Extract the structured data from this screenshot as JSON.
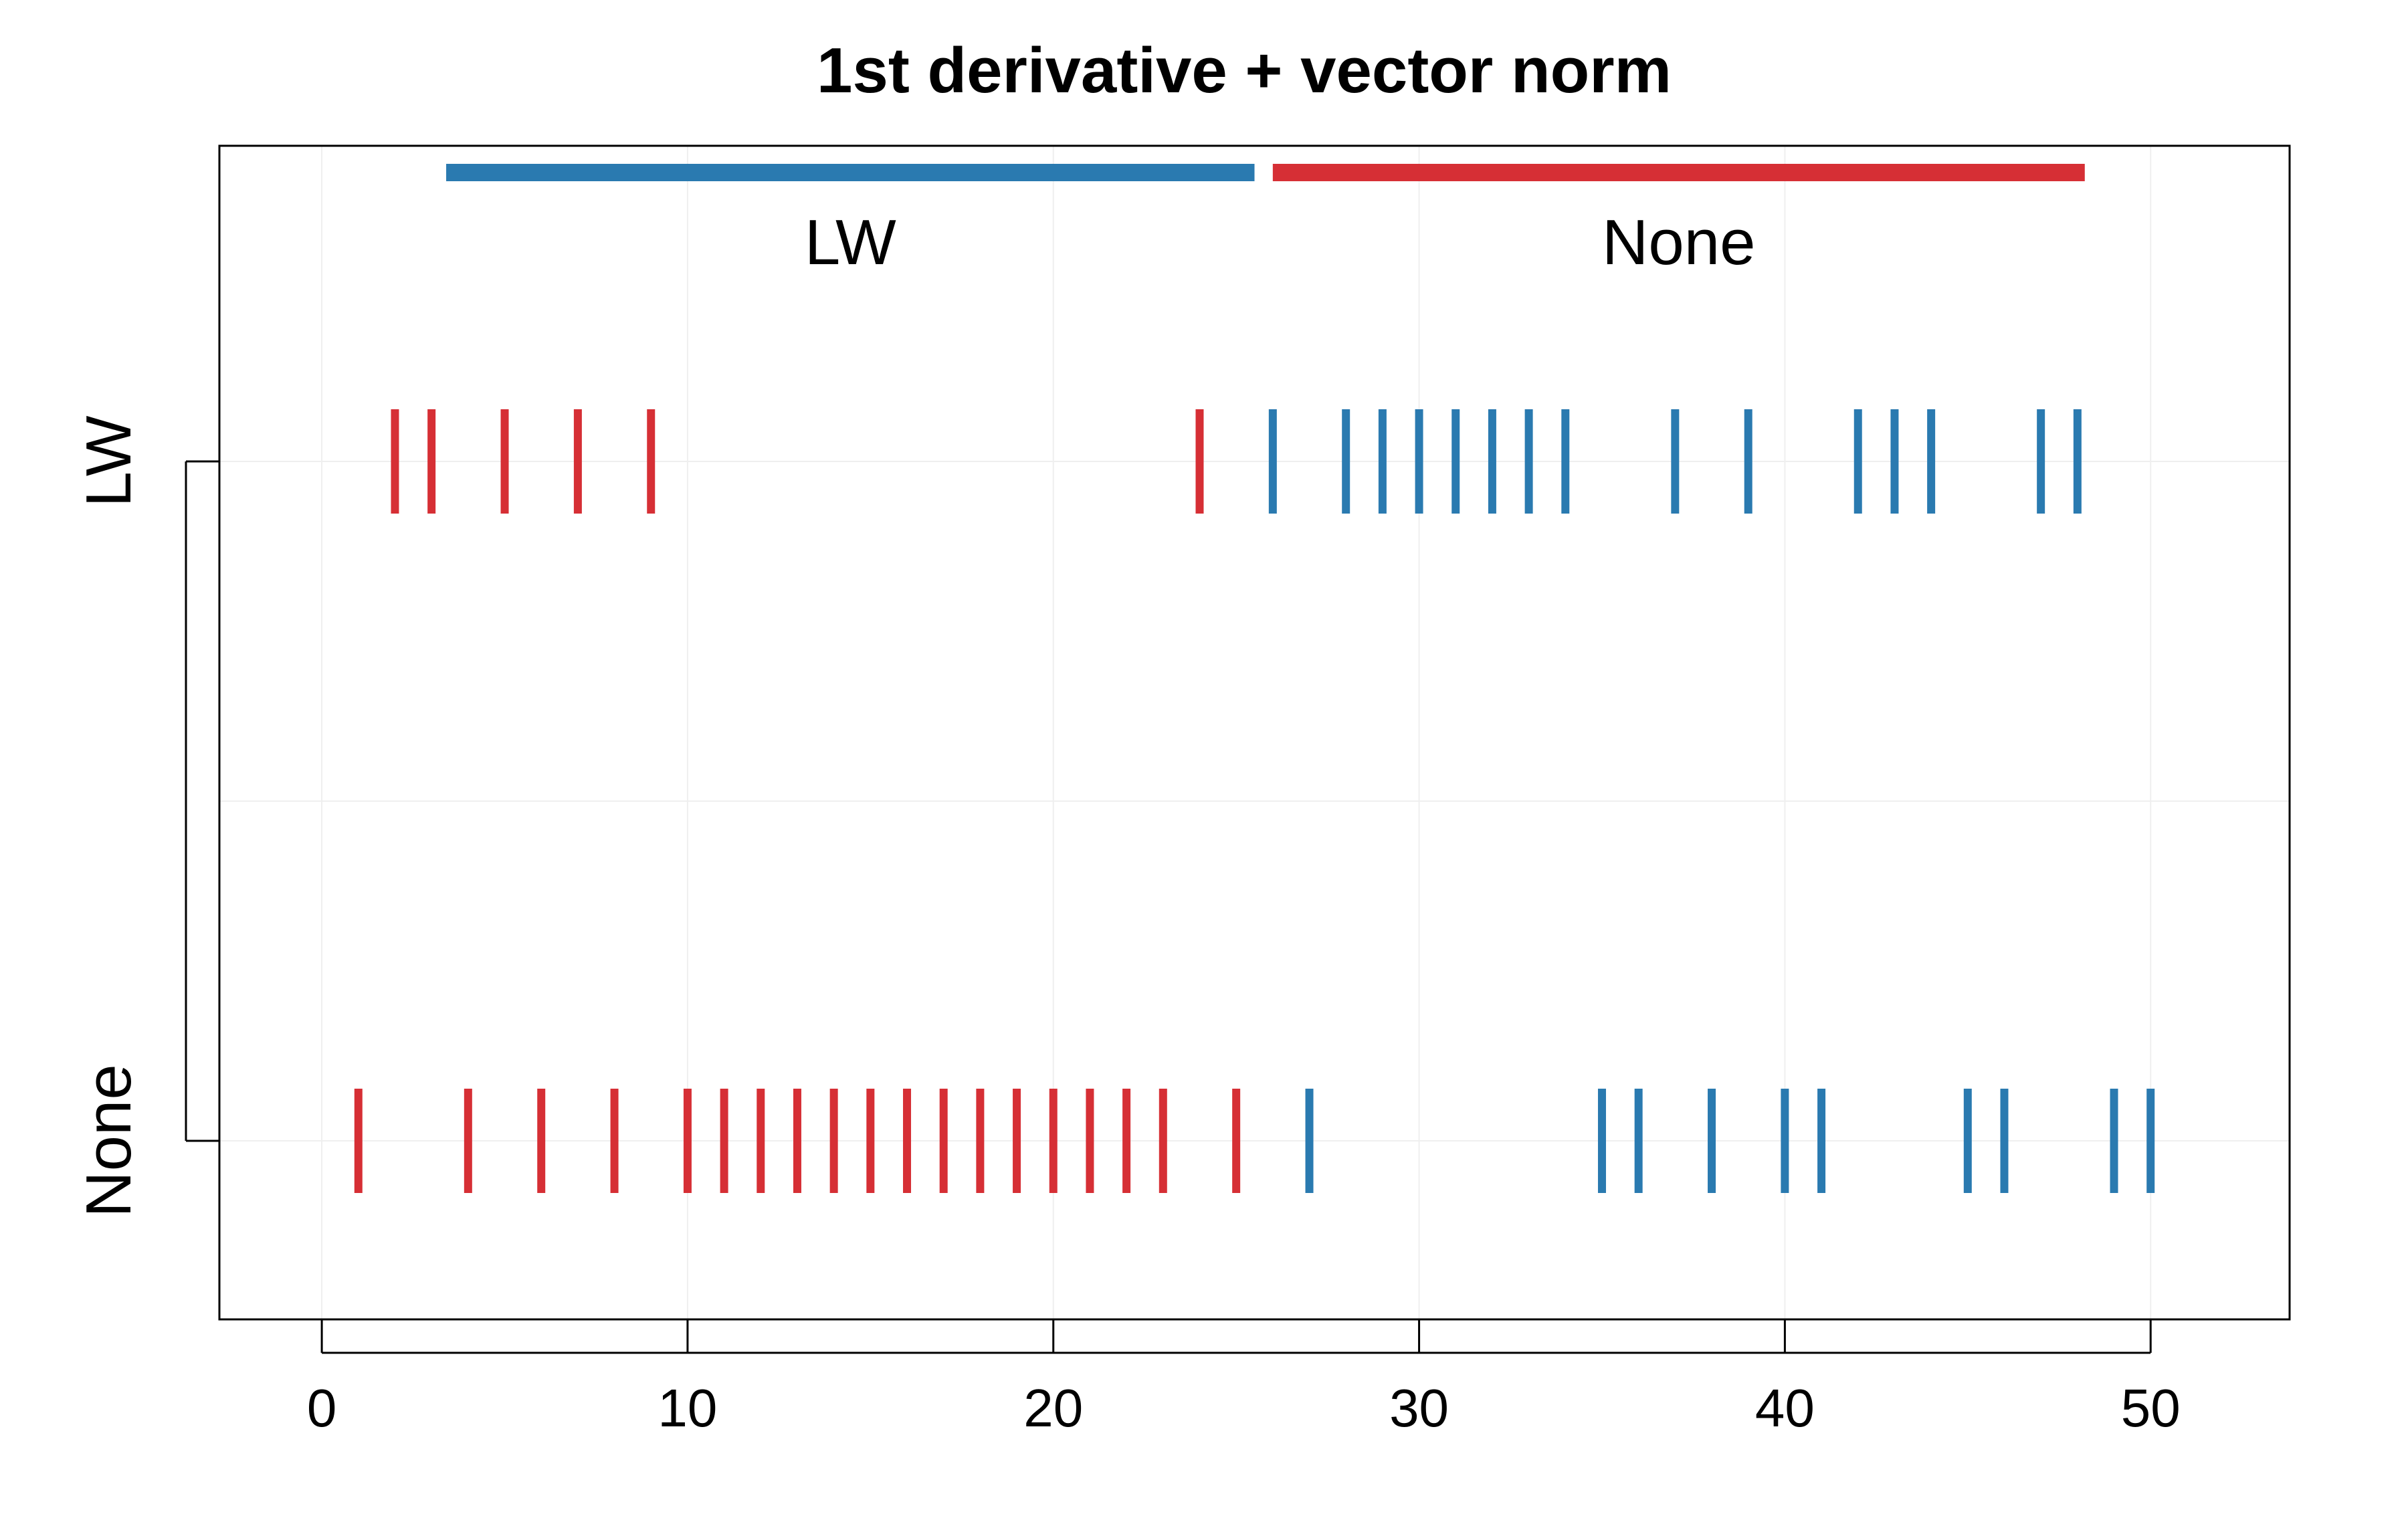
{
  "chart_data": {
    "type": "strip",
    "title": "1st derivative + vector norm",
    "xlabel": "",
    "ylabel": "",
    "xlim": [
      -2.8,
      53.8
    ],
    "x_ticks": [
      "0",
      "10",
      "20",
      "30",
      "40",
      "50"
    ],
    "x_tick_values": [
      0,
      10,
      20,
      30,
      40,
      50
    ],
    "y_categories": [
      "LW",
      "None"
    ],
    "grid": true,
    "colors": {
      "LW": "#2a7ab0",
      "None": "#d62f35"
    },
    "group_bars": [
      {
        "label": "LW",
        "color_key": "LW",
        "x_start": 3.4,
        "x_end": 25.5
      },
      {
        "label": "None",
        "color_key": "None",
        "x_start": 26.0,
        "x_end": 48.2
      }
    ],
    "series": [
      {
        "row": "LW",
        "color_key": "None",
        "x": [
          2,
          3,
          5,
          7,
          9,
          24
        ]
      },
      {
        "row": "LW",
        "color_key": "LW",
        "x": [
          26,
          28,
          29,
          30,
          31,
          32,
          33,
          34,
          37,
          39,
          42,
          43,
          44,
          47,
          48
        ]
      },
      {
        "row": "None",
        "color_key": "None",
        "x": [
          1,
          4,
          6,
          8,
          10,
          11,
          12,
          13,
          14,
          15,
          16,
          17,
          18,
          19,
          20,
          21,
          22,
          23,
          25
        ]
      },
      {
        "row": "None",
        "color_key": "LW",
        "x": [
          27,
          35,
          36,
          38,
          40,
          41,
          45,
          46,
          49,
          50
        ]
      }
    ]
  }
}
